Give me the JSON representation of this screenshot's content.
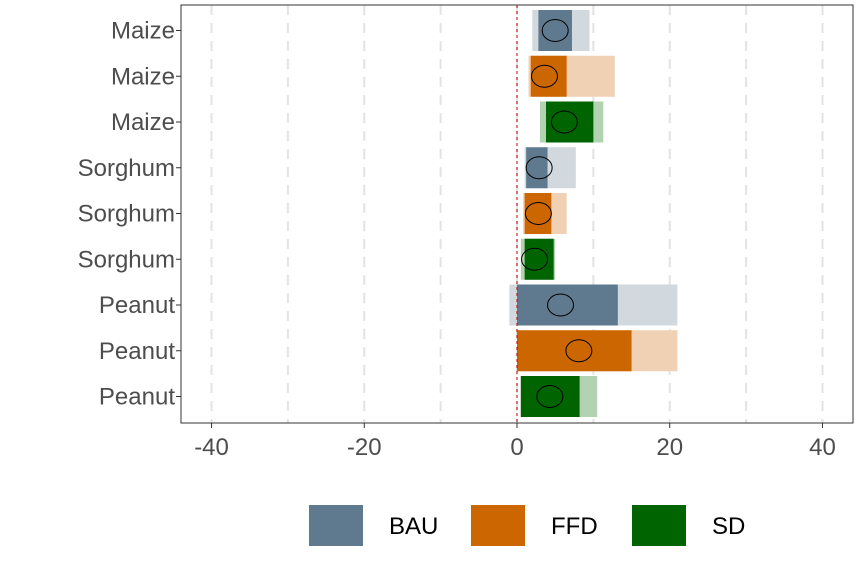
{
  "chart_data": {
    "type": "bar",
    "orientation": "horizontal",
    "categories": [
      "Maize",
      "Maize",
      "Maize",
      "Sorghum",
      "Sorghum",
      "Sorghum",
      "Peanut",
      "Peanut",
      "Peanut"
    ],
    "groups": [
      "BAU",
      "FFD",
      "SD",
      "BAU",
      "FFD",
      "SD",
      "BAU",
      "FFD",
      "SD"
    ],
    "range_low": [
      2.0,
      1.5,
      3.0,
      1.0,
      0.8,
      0.5,
      -1.0,
      0.0,
      0.5
    ],
    "range_high": [
      9.5,
      12.8,
      11.3,
      7.7,
      6.5,
      5.0,
      21.0,
      21.0,
      10.5
    ],
    "bar_low": [
      2.8,
      1.8,
      3.8,
      1.2,
      1.0,
      1.0,
      0.0,
      0.0,
      0.5
    ],
    "bar_high": [
      7.2,
      6.5,
      10.0,
      4.0,
      4.5,
      4.8,
      13.2,
      15.0,
      8.2
    ],
    "point": [
      5.0,
      3.6,
      6.2,
      2.9,
      2.8,
      2.3,
      5.7,
      8.1,
      4.3
    ],
    "xlim": [
      -44,
      44
    ],
    "xticks": [
      -40,
      -20,
      0,
      20,
      40
    ],
    "minor_gridlines": [
      -30,
      -10,
      10,
      30
    ],
    "reference_line": 0,
    "grid": true,
    "legend": {
      "position": "bottom",
      "items": [
        {
          "label": "BAU",
          "color": "#5f7a8e"
        },
        {
          "label": "FFD",
          "color": "#cc6600"
        },
        {
          "label": "SD",
          "color": "#006400"
        }
      ]
    },
    "title": "",
    "xlabel": "",
    "ylabel": ""
  },
  "colors": {
    "BAU": {
      "bar": "#5f7a8e",
      "range": "#d1d9de"
    },
    "FFD": {
      "bar": "#cc6600",
      "range": "#f1d1b3"
    },
    "SD": {
      "bar": "#006400",
      "range": "#b2d2b2"
    },
    "reference_line": "#cc0000"
  }
}
